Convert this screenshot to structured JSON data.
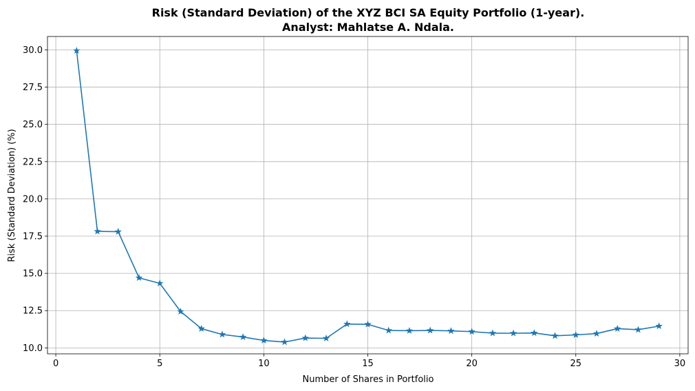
{
  "chart_data": {
    "type": "line",
    "title": "Risk (Standard Deviation) of the XYZ BCI SA Equity Portfolio (1-year).",
    "subtitle": "Analyst: Mahlatse A. Ndala.",
    "xlabel": "Number of Shares in Portfolio",
    "ylabel": "Risk (Standard Deviation) (%)",
    "xlim": [
      -0.4,
      30.4
    ],
    "ylim": [
      9.6,
      30.9
    ],
    "xticks": [
      0,
      5,
      10,
      15,
      20,
      25,
      30
    ],
    "yticks": [
      10.0,
      12.5,
      15.0,
      17.5,
      20.0,
      22.5,
      25.0,
      27.5,
      30.0
    ],
    "xtick_labels": [
      "0",
      "5",
      "10",
      "15",
      "20",
      "25",
      "30"
    ],
    "ytick_labels": [
      "10.0",
      "12.5",
      "15.0",
      "17.5",
      "20.0",
      "22.5",
      "25.0",
      "27.5",
      "30.0"
    ],
    "grid": true,
    "marker": "star",
    "color": "#1f77b4",
    "series": [
      {
        "x": [
          1,
          2,
          3,
          4,
          5,
          6,
          7,
          8,
          9,
          10,
          11,
          12,
          13,
          14,
          15,
          16,
          17,
          18,
          19,
          20,
          21,
          22,
          23,
          24,
          25,
          26,
          27,
          28,
          29
        ],
        "values": [
          29.95,
          17.82,
          17.8,
          14.7,
          14.33,
          12.44,
          11.29,
          10.9,
          10.73,
          10.5,
          10.39,
          10.66,
          10.64,
          11.6,
          11.58,
          11.17,
          11.15,
          11.17,
          11.14,
          11.09,
          10.99,
          10.98,
          11.0,
          10.81,
          10.87,
          10.96,
          11.29,
          11.22,
          11.46
        ]
      }
    ]
  }
}
